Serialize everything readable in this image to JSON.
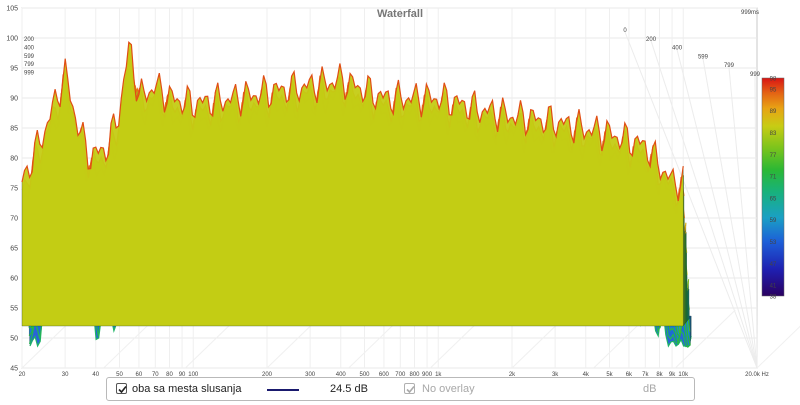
{
  "chart_data": {
    "type": "area",
    "title": "Waterfall",
    "time_readout": "999ms",
    "x_axis": {
      "scale": "log",
      "range": [
        20,
        20000
      ],
      "unit_label": "20.0k Hz",
      "tick_labels": [
        "20",
        "30",
        "40",
        "50",
        "60",
        "70",
        "80",
        "90",
        "100",
        "200",
        "300",
        "400",
        "500",
        "600",
        "700",
        "800",
        "900",
        "1k",
        "2k",
        "3k",
        "4k",
        "5k",
        "6k",
        "7k",
        "8k",
        "9k",
        "10k"
      ],
      "tick_values": [
        20,
        30,
        40,
        50,
        60,
        70,
        80,
        90,
        100,
        200,
        300,
        400,
        500,
        600,
        700,
        800,
        900,
        1000,
        2000,
        3000,
        4000,
        5000,
        6000,
        7000,
        8000,
        9000,
        10000
      ]
    },
    "y_axis": {
      "range": [
        45,
        105
      ],
      "tick_labels": [
        "45",
        "50",
        "55",
        "60",
        "65",
        "70",
        "75",
        "80",
        "85",
        "90",
        "95",
        "100",
        "105"
      ]
    },
    "time_axis": {
      "unit": "ms",
      "tick_labels": [
        "0",
        "200",
        "400",
        "599",
        "799",
        "999"
      ],
      "tick_values": [
        0,
        200,
        400,
        599,
        799,
        999
      ],
      "left_labels": [
        "200",
        "400",
        "599",
        "799",
        "999"
      ]
    },
    "colorbar": {
      "tick_labels": [
        "98",
        "95",
        "89",
        "83",
        "77",
        "71",
        "65",
        "59",
        "53",
        "47",
        "41",
        "38"
      ],
      "range": [
        38,
        98
      ]
    },
    "peaks": [
      {
        "freq": 20,
        "db": 76
      },
      {
        "freq": 25,
        "db": 85
      },
      {
        "freq": 30,
        "db": 94
      },
      {
        "freq": 34,
        "db": 85
      },
      {
        "freq": 38,
        "db": 80
      },
      {
        "freq": 45,
        "db": 82
      },
      {
        "freq": 50,
        "db": 88
      },
      {
        "freq": 55,
        "db": 99
      },
      {
        "freq": 60,
        "db": 90
      },
      {
        "freq": 70,
        "db": 92
      },
      {
        "freq": 80,
        "db": 90
      },
      {
        "freq": 100,
        "db": 89
      },
      {
        "freq": 150,
        "db": 90
      },
      {
        "freq": 200,
        "db": 91
      },
      {
        "freq": 300,
        "db": 92
      },
      {
        "freq": 400,
        "db": 93
      },
      {
        "freq": 600,
        "db": 90
      },
      {
        "freq": 1000,
        "db": 90
      },
      {
        "freq": 1500,
        "db": 88
      },
      {
        "freq": 2000,
        "db": 87
      },
      {
        "freq": 3000,
        "db": 86
      },
      {
        "freq": 5000,
        "db": 84
      },
      {
        "freq": 7000,
        "db": 82
      },
      {
        "freq": 9000,
        "db": 76
      }
    ],
    "series": [
      {
        "name": "oba sa mesta slusanja",
        "level": "24.5 dB",
        "color": "#1a1a6e",
        "checked": true
      },
      {
        "name": "No overlay",
        "level": "dB",
        "checked": true,
        "enabled": false
      }
    ]
  },
  "legend": {
    "primary_label": "oba sa mesta slusanja",
    "primary_level": "24.5 dB",
    "overlay_label": "No overlay",
    "overlay_level": "dB"
  },
  "colors": {
    "bar": [
      "#1d0060",
      "#2a1fa8",
      "#1f4fd0",
      "#1896c0",
      "#18b27a",
      "#2fb834",
      "#7cc41c",
      "#c6cc14",
      "#e4a814",
      "#e06a14",
      "#d82014"
    ]
  }
}
